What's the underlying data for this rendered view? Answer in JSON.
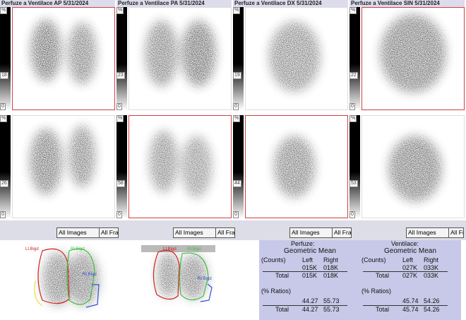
{
  "panels": [
    {
      "title": "Perfuze a Ventilace AP 5/31/2024",
      "colorbars": [
        {
          "unit": "%",
          "max": 18,
          "min": 0
        },
        {
          "unit": "%",
          "max": 26,
          "min": 0
        }
      ],
      "button": "All Images",
      "next_button": "All Fra"
    },
    {
      "title": "Perfuze a Ventilace PA 5/31/2024",
      "colorbars": [
        {
          "unit": "%",
          "max": 23,
          "min": 0
        },
        {
          "unit": "%",
          "max": 58,
          "min": 0
        }
      ],
      "button": "All Images",
      "next_button": "All Fra"
    },
    {
      "title": "Perfuze a Ventilace DX 5/31/2024",
      "colorbars": [
        {
          "unit": "%",
          "max": 19,
          "min": 0
        },
        {
          "unit": "%",
          "max": 44,
          "min": 0
        }
      ],
      "button": "All Images",
      "next_button": "All Fra"
    },
    {
      "title": "Perfuze a Ventilace SIN 5/31/2024",
      "colorbars": [
        {
          "unit": "%",
          "max": 22,
          "min": 0
        },
        {
          "unit": "%",
          "max": 53,
          "min": 0
        }
      ],
      "button": "All Images",
      "next_button": "All Fra"
    }
  ],
  "roi_images": [
    {
      "labels": [
        "Lt.Bigd",
        "Rt.Bigd",
        "Rt.Bigd"
      ]
    },
    {
      "labels": [
        "Lt.Bigd",
        "Rt.Bigd",
        "Rt.Bigd"
      ]
    }
  ],
  "results": {
    "sections": [
      {
        "heading": "Perfuze:",
        "subheading": "Geometric Mean",
        "counts_label": "(Counts)",
        "left_label": "Left",
        "right_label": "Right",
        "counts": [
          "015K",
          "018K"
        ],
        "total_label": "Total",
        "counts_total": [
          "015K",
          "018K"
        ],
        "ratios_label": "(% Ratios)",
        "ratios": [
          44.27,
          55.73
        ],
        "ratios_total_label": "Total",
        "ratios_total": [
          44.27,
          55.73
        ]
      },
      {
        "heading": "Ventilace:",
        "subheading": "Geometric Mean",
        "counts_label": "(Counts)",
        "left_label": "Left",
        "right_label": "Right",
        "counts": [
          "027K",
          "033K"
        ],
        "total_label": "Total",
        "counts_total": [
          "027K",
          "033K"
        ],
        "ratios_label": "(% Ratios)",
        "ratios": [
          45.74,
          54.26
        ],
        "ratios_total_label": "Total",
        "ratios_total": [
          45.74,
          54.26
        ]
      }
    ]
  }
}
